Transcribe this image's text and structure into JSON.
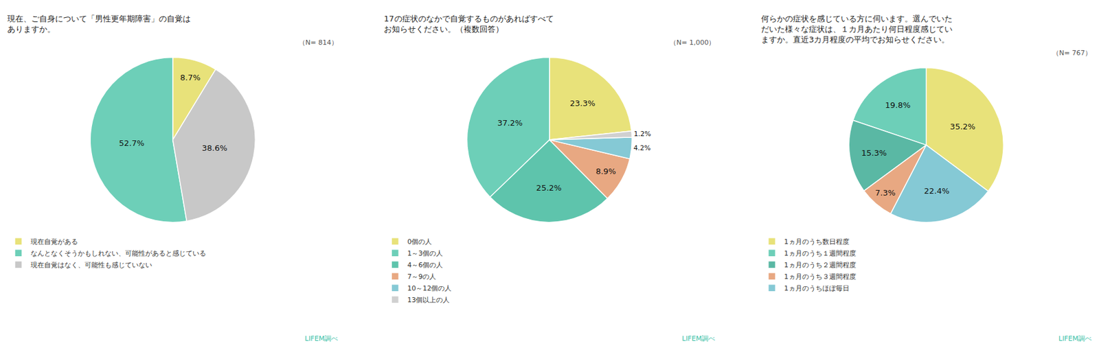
{
  "chart_data": [
    {
      "type": "pie",
      "title": "現在、ご自身について「男性更年期障害」の自覚は\nありますか。",
      "subtitle": "（N= 814）",
      "categories": [
        "現在自覚がある",
        "なんとなくそうかもしれない、可能性があると感じている",
        "現在自覚はなく、可能性も感じていない"
      ],
      "values": [
        8.7,
        52.7,
        38.6
      ],
      "value_labels": [
        "8.7%",
        "52.7%",
        "38.6%"
      ],
      "colors": [
        "#e8e27a",
        "#6dcfb8",
        "#c8c8c8"
      ],
      "data_labels": true,
      "legend": "bottom",
      "annotations": [
        "LIFEM調べ"
      ]
    },
    {
      "type": "pie",
      "title": "17の症状のなかで自覚するものがあればすべて\nお知らせください。（複数回答）",
      "subtitle": "（N= 1,000）",
      "categories": [
        "0個の人",
        "1～3個の人",
        "4～6個の人",
        "7～9の人",
        "10～12個の人",
        "13個以上の人"
      ],
      "values": [
        23.3,
        37.2,
        25.2,
        8.9,
        4.2,
        1.2
      ],
      "value_labels": [
        "23.3%",
        "37.2%",
        "25.2%",
        "8.9%",
        "4.2%",
        "1.2%"
      ],
      "colors": [
        "#e8e27a",
        "#6dcfb8",
        "#5ec4ac",
        "#e8a882",
        "#85c9d5",
        "#d0d0d0"
      ],
      "data_labels": true,
      "legend": "bottom",
      "annotations": [
        "LIFEM調べ"
      ]
    },
    {
      "type": "pie",
      "title": "何らかの症状を感じている方に伺います。選んでいた\nだいた様々な症状は、１カ月あたり何日程度感じてい\nますか。直近3カ月程度の平均でお知らせください。",
      "subtitle": "（N= 767）",
      "categories": [
        "1ヵ月のうち数日程度",
        "1ヵ月のうち１週間程度",
        "1ヵ月のうち２週間程度",
        "1ヵ月のうち３週間程度",
        "1ヵ月のうちほぼ毎日"
      ],
      "values": [
        35.2,
        19.8,
        15.3,
        7.3,
        22.4
      ],
      "value_labels": [
        "35.2%",
        "19.8%",
        "15.3%",
        "7.3%",
        "22.4%"
      ],
      "colors": [
        "#e8e27a",
        "#6dcfb8",
        "#5ab8a4",
        "#e8a882",
        "#85c9d5"
      ],
      "data_labels": true,
      "legend": "bottom",
      "annotations": [
        "LIFEM調べ"
      ]
    }
  ]
}
